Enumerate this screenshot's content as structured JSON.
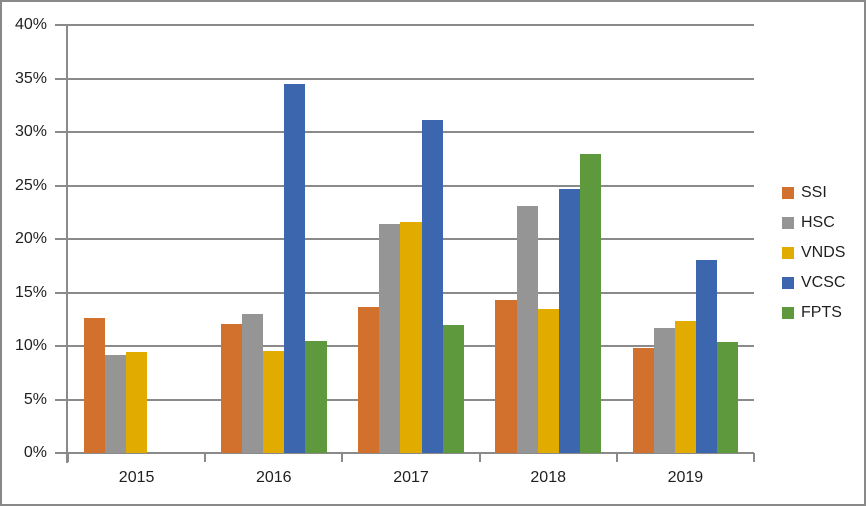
{
  "chart_data": {
    "type": "bar",
    "title": "",
    "xlabel": "",
    "ylabel": "",
    "categories": [
      "2015",
      "2016",
      "2017",
      "2018",
      "2019"
    ],
    "series": [
      {
        "name": "SSI",
        "color": "#d2712e",
        "values": [
          12.6,
          12.1,
          13.6,
          14.3,
          9.8
        ]
      },
      {
        "name": "HSC",
        "color": "#959595",
        "values": [
          9.2,
          13.0,
          21.4,
          23.1,
          11.7
        ]
      },
      {
        "name": "VNDS",
        "color": "#e2ab00",
        "values": [
          9.4,
          9.5,
          21.6,
          13.5,
          12.3
        ]
      },
      {
        "name": "VCSC",
        "color": "#3c67af",
        "values": [
          0,
          34.5,
          31.1,
          24.7,
          18.0
        ]
      },
      {
        "name": "FPTS",
        "color": "#5e9a3d",
        "values": [
          0,
          10.5,
          12.0,
          27.9,
          10.4
        ]
      }
    ],
    "ylim": [
      0,
      40
    ],
    "ytick_step": 5,
    "ytick_labels": [
      "0%",
      "5%",
      "10%",
      "15%",
      "20%",
      "25%",
      "30%",
      "35%",
      "40%"
    ],
    "grid": true,
    "legend_position": "right",
    "colors": {
      "gridline": "#8a8a8a",
      "axis": "#8a8a8a",
      "text": "#1f1f1f",
      "border": "#898989",
      "background": "#ffffff"
    }
  }
}
